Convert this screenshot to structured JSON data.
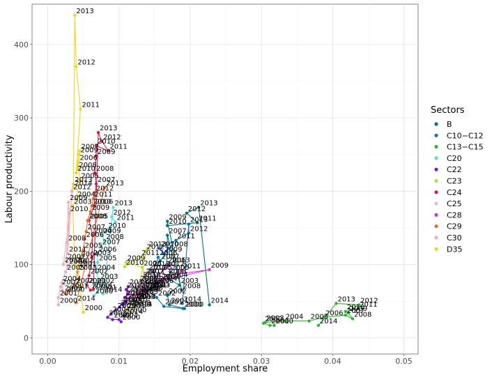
{
  "chart_data": {
    "type": "scatter",
    "xlabel": "Employment share",
    "ylabel": "Labour productivity",
    "xlim": [
      -0.0022,
      0.052
    ],
    "ylim": [
      -22,
      455
    ],
    "x_ticks": [
      0.0,
      0.01,
      0.02,
      0.03,
      0.04,
      0.05
    ],
    "x_tick_labels": [
      "0.00",
      "0.01",
      "0.02",
      "0.03",
      "0.04",
      "0.05"
    ],
    "y_ticks": [
      0,
      100,
      200,
      300,
      400
    ],
    "y_tick_labels": [
      "0",
      "100",
      "200",
      "300",
      "400"
    ],
    "legend": {
      "title": "Sectors",
      "position": "right"
    },
    "series": [
      {
        "name": "B",
        "color": "#00727a",
        "points": [
          {
            "year": "2000",
            "x": 0.0192,
            "y": 40
          },
          {
            "year": "2001",
            "x": 0.0171,
            "y": 45
          },
          {
            "year": "2002",
            "x": 0.0168,
            "y": 58
          },
          {
            "year": "2003",
            "x": 0.0185,
            "y": 72
          },
          {
            "year": "2004",
            "x": 0.017,
            "y": 80
          },
          {
            "year": "2005",
            "x": 0.0172,
            "y": 90
          },
          {
            "year": "2006",
            "x": 0.0167,
            "y": 100
          },
          {
            "year": "2007",
            "x": 0.0168,
            "y": 140
          },
          {
            "year": "2008",
            "x": 0.0188,
            "y": 65
          },
          {
            "year": "2009",
            "x": 0.0168,
            "y": 159
          },
          {
            "year": "2010",
            "x": 0.0168,
            "y": 153
          },
          {
            "year": "2011",
            "x": 0.021,
            "y": 157
          },
          {
            "year": "2012",
            "x": 0.0195,
            "y": 170
          },
          {
            "year": "2013",
            "x": 0.0212,
            "y": 178
          },
          {
            "year": "2014",
            "x": 0.0227,
            "y": 45
          }
        ]
      },
      {
        "name": "C10−C12",
        "color": "#0a73c5",
        "points": [
          {
            "year": "2000",
            "x": 0.019,
            "y": 40
          },
          {
            "year": "2001",
            "x": 0.0163,
            "y": 43
          },
          {
            "year": "2002",
            "x": 0.0153,
            "y": 55
          },
          {
            "year": "2003",
            "x": 0.0145,
            "y": 66
          },
          {
            "year": "2004",
            "x": 0.0155,
            "y": 75
          },
          {
            "year": "2005",
            "x": 0.0148,
            "y": 90
          },
          {
            "year": "2006",
            "x": 0.0155,
            "y": 110
          },
          {
            "year": "2007",
            "x": 0.0158,
            "y": 105
          },
          {
            "year": "2008",
            "x": 0.017,
            "y": 122
          },
          {
            "year": "2009",
            "x": 0.0162,
            "y": 115
          },
          {
            "year": "2010",
            "x": 0.0157,
            "y": 122
          },
          {
            "year": "2011",
            "x": 0.018,
            "y": 133
          },
          {
            "year": "2012",
            "x": 0.0198,
            "y": 143
          },
          {
            "year": "2013",
            "x": 0.0198,
            "y": 155
          },
          {
            "year": "2014",
            "x": 0.0189,
            "y": 47
          }
        ]
      },
      {
        "name": "C13−C15",
        "color": "#2db82d",
        "points": [
          {
            "year": "2000",
            "x": 0.0318,
            "y": 17
          },
          {
            "year": "2001",
            "x": 0.0312,
            "y": 17
          },
          {
            "year": "2002",
            "x": 0.0303,
            "y": 20
          },
          {
            "year": "2003",
            "x": 0.0305,
            "y": 21
          },
          {
            "year": "2004",
            "x": 0.0332,
            "y": 23
          },
          {
            "year": "2005",
            "x": 0.0367,
            "y": 23
          },
          {
            "year": "2006",
            "x": 0.0388,
            "y": 28
          },
          {
            "year": "2007",
            "x": 0.0418,
            "y": 31
          },
          {
            "year": "2008",
            "x": 0.0428,
            "y": 26
          },
          {
            "year": "2009",
            "x": 0.0422,
            "y": 34
          },
          {
            "year": "2010",
            "x": 0.0418,
            "y": 36
          },
          {
            "year": "2011",
            "x": 0.0436,
            "y": 40
          },
          {
            "year": "2012",
            "x": 0.0437,
            "y": 45
          },
          {
            "year": "2013",
            "x": 0.0405,
            "y": 47
          },
          {
            "year": "2014",
            "x": 0.038,
            "y": 17
          }
        ]
      },
      {
        "name": "C20",
        "color": "#4de0de",
        "points": [
          {
            "year": "2000",
            "x": 0.0065,
            "y": 58
          },
          {
            "year": "2001",
            "x": 0.007,
            "y": 63
          },
          {
            "year": "2002",
            "x": 0.0067,
            "y": 72
          },
          {
            "year": "2003",
            "x": 0.0072,
            "y": 78
          },
          {
            "year": "2004",
            "x": 0.0068,
            "y": 90
          },
          {
            "year": "2005",
            "x": 0.007,
            "y": 103
          },
          {
            "year": "2006",
            "x": 0.007,
            "y": 115
          },
          {
            "year": "2007",
            "x": 0.0075,
            "y": 125
          },
          {
            "year": "2008",
            "x": 0.008,
            "y": 132
          },
          {
            "year": "2009",
            "x": 0.0076,
            "y": 140
          },
          {
            "year": "2010",
            "x": 0.0083,
            "y": 147
          },
          {
            "year": "2011",
            "x": 0.0095,
            "y": 158
          },
          {
            "year": "2012",
            "x": 0.009,
            "y": 165
          },
          {
            "year": "2013",
            "x": 0.0092,
            "y": 178
          },
          {
            "year": "2014",
            "x": 0.0078,
            "y": 60
          }
        ]
      },
      {
        "name": "C22",
        "color": "#7a1fbf",
        "points": [
          {
            "year": "2000",
            "x": 0.0103,
            "y": 22
          },
          {
            "year": "2001",
            "x": 0.01,
            "y": 25
          },
          {
            "year": "2002",
            "x": 0.0091,
            "y": 25
          },
          {
            "year": "2003",
            "x": 0.0084,
            "y": 28
          },
          {
            "year": "2004",
            "x": 0.0089,
            "y": 33
          },
          {
            "year": "2005",
            "x": 0.0096,
            "y": 38
          },
          {
            "year": "2006",
            "x": 0.0101,
            "y": 42
          },
          {
            "year": "2007",
            "x": 0.0105,
            "y": 47
          },
          {
            "year": "2008",
            "x": 0.011,
            "y": 50
          },
          {
            "year": "2009",
            "x": 0.0106,
            "y": 45
          },
          {
            "year": "2010",
            "x": 0.0108,
            "y": 55
          },
          {
            "year": "2011",
            "x": 0.0112,
            "y": 60
          },
          {
            "year": "2012",
            "x": 0.011,
            "y": 66
          },
          {
            "year": "2013",
            "x": 0.0113,
            "y": 70
          },
          {
            "year": "2014",
            "x": 0.0107,
            "y": 30
          }
        ]
      },
      {
        "name": "C23",
        "color": "#c3dc2c",
        "points": [
          {
            "year": "2000",
            "x": 0.0112,
            "y": 32
          },
          {
            "year": "2001",
            "x": 0.011,
            "y": 38
          },
          {
            "year": "2002",
            "x": 0.0118,
            "y": 42
          },
          {
            "year": "2003",
            "x": 0.0124,
            "y": 50
          },
          {
            "year": "2004",
            "x": 0.013,
            "y": 60
          },
          {
            "year": "2005",
            "x": 0.0128,
            "y": 70
          },
          {
            "year": "2006",
            "x": 0.0132,
            "y": 78
          },
          {
            "year": "2007",
            "x": 0.0136,
            "y": 85
          },
          {
            "year": "2008",
            "x": 0.0133,
            "y": 96
          },
          {
            "year": "2009",
            "x": 0.011,
            "y": 103
          },
          {
            "year": "2010",
            "x": 0.0108,
            "y": 97
          },
          {
            "year": "2011",
            "x": 0.013,
            "y": 110
          },
          {
            "year": "2012",
            "x": 0.0137,
            "y": 118
          },
          {
            "year": "2013",
            "x": 0.014,
            "y": 122
          },
          {
            "year": "2014",
            "x": 0.012,
            "y": 40
          }
        ]
      },
      {
        "name": "C24",
        "color": "#d41c4c",
        "points": [
          {
            "year": "2000",
            "x": 0.006,
            "y": 65
          },
          {
            "year": "2001",
            "x": 0.0055,
            "y": 72
          },
          {
            "year": "2002",
            "x": 0.0058,
            "y": 85
          },
          {
            "year": "2003",
            "x": 0.0062,
            "y": 110
          },
          {
            "year": "2004",
            "x": 0.0063,
            "y": 140
          },
          {
            "year": "2005",
            "x": 0.0058,
            "y": 160
          },
          {
            "year": "2006",
            "x": 0.0065,
            "y": 180
          },
          {
            "year": "2007",
            "x": 0.0068,
            "y": 210
          },
          {
            "year": "2008",
            "x": 0.0066,
            "y": 225
          },
          {
            "year": "2009",
            "x": 0.0068,
            "y": 248
          },
          {
            "year": "2010",
            "x": 0.0068,
            "y": 262
          },
          {
            "year": "2011",
            "x": 0.0085,
            "y": 255
          },
          {
            "year": "2012",
            "x": 0.0076,
            "y": 268
          },
          {
            "year": "2013",
            "x": 0.0071,
            "y": 280
          },
          {
            "year": "2014",
            "x": 0.0064,
            "y": 66
          }
        ]
      },
      {
        "name": "C25",
        "color": "#e8b4ec",
        "points": [
          {
            "year": "2000",
            "x": 0.0118,
            "y": 40
          },
          {
            "year": "2001",
            "x": 0.0115,
            "y": 46
          },
          {
            "year": "2002",
            "x": 0.0122,
            "y": 52
          },
          {
            "year": "2003",
            "x": 0.0128,
            "y": 57
          },
          {
            "year": "2004",
            "x": 0.0132,
            "y": 62
          },
          {
            "year": "2005",
            "x": 0.0136,
            "y": 66
          },
          {
            "year": "2006",
            "x": 0.0138,
            "y": 70
          },
          {
            "year": "2007",
            "x": 0.0134,
            "y": 72
          },
          {
            "year": "2008",
            "x": 0.0126,
            "y": 68
          },
          {
            "year": "2009",
            "x": 0.0128,
            "y": 75
          },
          {
            "year": "2010",
            "x": 0.0132,
            "y": 80
          },
          {
            "year": "2011",
            "x": 0.0138,
            "y": 85
          },
          {
            "year": "2012",
            "x": 0.014,
            "y": 90
          },
          {
            "year": "2013",
            "x": 0.0145,
            "y": 95
          },
          {
            "year": "2014",
            "x": 0.0125,
            "y": 50
          }
        ]
      },
      {
        "name": "C28",
        "color": "#d837d6",
        "points": [
          {
            "year": "2000",
            "x": 0.0114,
            "y": 62
          },
          {
            "year": "2001",
            "x": 0.012,
            "y": 58
          },
          {
            "year": "2002",
            "x": 0.0128,
            "y": 60
          },
          {
            "year": "2003",
            "x": 0.0135,
            "y": 62
          },
          {
            "year": "2004",
            "x": 0.014,
            "y": 65
          },
          {
            "year": "2005",
            "x": 0.0145,
            "y": 68
          },
          {
            "year": "2006",
            "x": 0.015,
            "y": 72
          },
          {
            "year": "2007",
            "x": 0.0158,
            "y": 78
          },
          {
            "year": "2008",
            "x": 0.0168,
            "y": 85
          },
          {
            "year": "2009",
            "x": 0.0227,
            "y": 93
          },
          {
            "year": "2010",
            "x": 0.016,
            "y": 78
          },
          {
            "year": "2011",
            "x": 0.0188,
            "y": 92
          },
          {
            "year": "2012",
            "x": 0.0165,
            "y": 95
          },
          {
            "year": "2013",
            "x": 0.0173,
            "y": 100
          },
          {
            "year": "2014",
            "x": 0.0115,
            "y": 55
          }
        ]
      },
      {
        "name": "C29",
        "color": "#ef6a1f",
        "points": [
          {
            "year": "2000",
            "x": 0.0025,
            "y": 60
          },
          {
            "year": "2001",
            "x": 0.003,
            "y": 65
          },
          {
            "year": "2002",
            "x": 0.0038,
            "y": 72
          },
          {
            "year": "2003",
            "x": 0.0042,
            "y": 90
          },
          {
            "year": "2004",
            "x": 0.0045,
            "y": 108
          },
          {
            "year": "2005",
            "x": 0.005,
            "y": 120
          },
          {
            "year": "2006",
            "x": 0.0052,
            "y": 135
          },
          {
            "year": "2007",
            "x": 0.0054,
            "y": 145
          },
          {
            "year": "2008",
            "x": 0.0056,
            "y": 160
          },
          {
            "year": "2009",
            "x": 0.006,
            "y": 172
          },
          {
            "year": "2010",
            "x": 0.0062,
            "y": 180
          },
          {
            "year": "2011",
            "x": 0.0064,
            "y": 190
          },
          {
            "year": "2012",
            "x": 0.0066,
            "y": 198
          },
          {
            "year": "2013",
            "x": 0.008,
            "y": 205
          },
          {
            "year": "2014",
            "x": 0.004,
            "y": 48
          }
        ]
      },
      {
        "name": "C30",
        "color": "#f2a9b8",
        "points": [
          {
            "year": "2000",
            "x": 0.0015,
            "y": 45
          },
          {
            "year": "2001",
            "x": 0.0015,
            "y": 55
          },
          {
            "year": "2002",
            "x": 0.0018,
            "y": 70
          },
          {
            "year": "2003",
            "x": 0.0022,
            "y": 62
          },
          {
            "year": "2004",
            "x": 0.002,
            "y": 75
          },
          {
            "year": "2005",
            "x": 0.0025,
            "y": 90
          },
          {
            "year": "2006",
            "x": 0.0028,
            "y": 98
          },
          {
            "year": "2007",
            "x": 0.0026,
            "y": 105
          },
          {
            "year": "2008",
            "x": 0.0027,
            "y": 130
          },
          {
            "year": "2009",
            "x": 0.0029,
            "y": 185
          },
          {
            "year": "2010",
            "x": 0.003,
            "y": 170
          },
          {
            "year": "2011",
            "x": 0.0028,
            "y": 115
          },
          {
            "year": "2012",
            "x": 0.0034,
            "y": 200
          },
          {
            "year": "2013",
            "x": 0.0036,
            "y": 210
          },
          {
            "year": "2014",
            "x": 0.0022,
            "y": 100
          }
        ]
      },
      {
        "name": "D35",
        "color": "#f4d41a",
        "points": [
          {
            "year": "2000",
            "x": 0.005,
            "y": 35
          },
          {
            "year": "2001",
            "x": 0.0042,
            "y": 95
          },
          {
            "year": "2002",
            "x": 0.0038,
            "y": 100
          },
          {
            "year": "2003",
            "x": 0.0035,
            "y": 180
          },
          {
            "year": "2004",
            "x": 0.004,
            "y": 190
          },
          {
            "year": "2005",
            "x": 0.0045,
            "y": 215
          },
          {
            "year": "2006",
            "x": 0.0043,
            "y": 240
          },
          {
            "year": "2007",
            "x": 0.0045,
            "y": 255
          },
          {
            "year": "2008",
            "x": 0.0042,
            "y": 230
          },
          {
            "year": "2009",
            "x": 0.0044,
            "y": 250
          },
          {
            "year": "2010",
            "x": 0.004,
            "y": 225
          },
          {
            "year": "2011",
            "x": 0.0046,
            "y": 312
          },
          {
            "year": "2012",
            "x": 0.004,
            "y": 370
          },
          {
            "year": "2013",
            "x": 0.0038,
            "y": 440
          },
          {
            "year": "2014",
            "x": 0.0036,
            "y": 205
          }
        ]
      }
    ]
  }
}
